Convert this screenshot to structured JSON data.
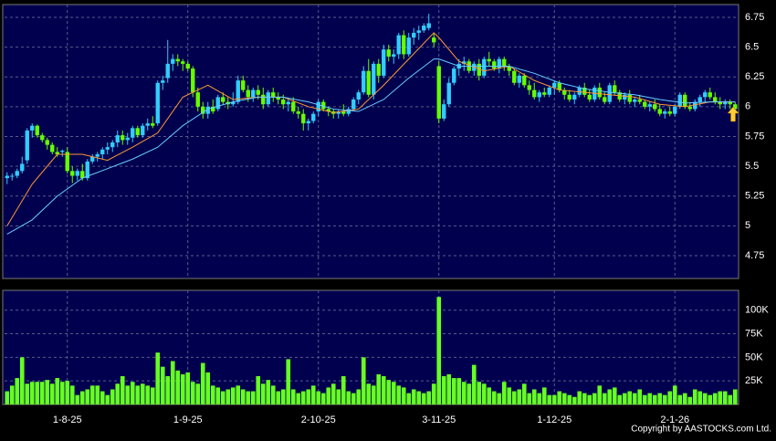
{
  "chart_data": {
    "type": "candlestick",
    "grid": true,
    "up_color": "#33ccff",
    "down_color": "#66ff00",
    "categories": [
      null,
      null,
      null,
      null,
      null,
      null,
      null,
      null,
      null,
      null,
      null,
      null,
      "1-8-25",
      null,
      null,
      null,
      null,
      null,
      null,
      null,
      null,
      null,
      null,
      null,
      null,
      null,
      null,
      null,
      null,
      null,
      null,
      null,
      null,
      null,
      null,
      null,
      "1-9-25",
      null,
      null,
      null,
      null,
      null,
      null,
      null,
      null,
      null,
      null,
      null,
      null,
      null,
      null,
      null,
      null,
      null,
      null,
      null,
      null,
      null,
      null,
      null,
      null,
      null,
      "2-10-25",
      null,
      null,
      null,
      null,
      null,
      null,
      null,
      null,
      null,
      null,
      null,
      null,
      null,
      null,
      null,
      null,
      null,
      null,
      null,
      null,
      null,
      null,
      null,
      "3-11-25",
      null,
      null,
      null,
      null,
      null,
      null,
      null,
      null,
      null,
      null,
      null,
      null,
      null,
      null,
      null,
      null,
      null,
      null,
      null,
      null,
      null,
      null,
      "1-12-25",
      null,
      null,
      null,
      null,
      null,
      null,
      null,
      null,
      null,
      null,
      null,
      null,
      null,
      null,
      null,
      null,
      null,
      null,
      null,
      null,
      null,
      null,
      null,
      "2-1-26",
      null,
      null,
      null,
      null,
      null,
      null,
      null,
      null,
      null,
      null,
      null,
      null
    ],
    "ohlc": [
      [
        5.4,
        5.45,
        5.35,
        5.42
      ],
      [
        5.42,
        5.44,
        5.38,
        5.42
      ],
      [
        5.42,
        5.48,
        5.4,
        5.46
      ],
      [
        5.46,
        5.58,
        5.44,
        5.52
      ],
      [
        5.55,
        5.82,
        5.52,
        5.8
      ],
      [
        5.8,
        5.86,
        5.74,
        5.84
      ],
      [
        5.84,
        5.85,
        5.74,
        5.76
      ],
      [
        5.76,
        5.78,
        5.7,
        5.72
      ],
      [
        5.72,
        5.74,
        5.64,
        5.68
      ],
      [
        5.68,
        5.7,
        5.6,
        5.62
      ],
      [
        5.62,
        5.66,
        5.58,
        5.6
      ],
      [
        5.62,
        5.64,
        5.58,
        5.63
      ],
      [
        5.62,
        5.66,
        5.44,
        5.46
      ],
      [
        5.46,
        5.5,
        5.36,
        5.42
      ],
      [
        5.42,
        5.48,
        5.38,
        5.46
      ],
      [
        5.46,
        5.52,
        5.38,
        5.4
      ],
      [
        5.4,
        5.56,
        5.38,
        5.54
      ],
      [
        5.54,
        5.6,
        5.52,
        5.58
      ],
      [
        5.58,
        5.62,
        5.54,
        5.6
      ],
      [
        5.6,
        5.66,
        5.56,
        5.64
      ],
      [
        5.64,
        5.7,
        5.6,
        5.66
      ],
      [
        5.66,
        5.72,
        5.62,
        5.7
      ],
      [
        5.7,
        5.8,
        5.66,
        5.76
      ],
      [
        5.76,
        5.8,
        5.68,
        5.72
      ],
      [
        5.72,
        5.78,
        5.68,
        5.74
      ],
      [
        5.74,
        5.84,
        5.7,
        5.82
      ],
      [
        5.82,
        5.84,
        5.74,
        5.76
      ],
      [
        5.76,
        5.86,
        5.74,
        5.84
      ],
      [
        5.84,
        5.9,
        5.8,
        5.86
      ],
      [
        5.86,
        5.92,
        5.82,
        5.84
      ],
      [
        5.86,
        6.22,
        5.84,
        6.2
      ],
      [
        6.2,
        6.26,
        6.14,
        6.22
      ],
      [
        6.24,
        6.56,
        6.2,
        6.36
      ],
      [
        6.36,
        6.44,
        6.3,
        6.4
      ],
      [
        6.4,
        6.44,
        6.34,
        6.38
      ],
      [
        6.38,
        6.4,
        6.3,
        6.36
      ],
      [
        6.36,
        6.38,
        6.3,
        6.32
      ],
      [
        6.32,
        6.34,
        6.08,
        6.12
      ],
      [
        6.12,
        6.16,
        5.96,
        6.0
      ],
      [
        6.0,
        6.04,
        5.9,
        5.94
      ],
      [
        5.94,
        6.04,
        5.9,
        6.0
      ],
      [
        6.0,
        6.06,
        5.94,
        5.96
      ],
      [
        5.98,
        6.1,
        5.96,
        6.08
      ],
      [
        6.08,
        6.12,
        6.02,
        6.04
      ],
      [
        6.04,
        6.08,
        5.98,
        6.02
      ],
      [
        6.02,
        6.12,
        6.0,
        6.04
      ],
      [
        6.04,
        6.26,
        6.02,
        6.22
      ],
      [
        6.22,
        6.26,
        6.12,
        6.14
      ],
      [
        6.14,
        6.18,
        6.04,
        6.08
      ],
      [
        6.08,
        6.16,
        6.04,
        6.14
      ],
      [
        6.14,
        6.18,
        6.06,
        6.1
      ],
      [
        6.1,
        6.16,
        5.98,
        6.02
      ],
      [
        6.02,
        6.14,
        6.0,
        6.12
      ],
      [
        6.12,
        6.16,
        6.04,
        6.08
      ],
      [
        6.08,
        6.12,
        6.02,
        6.06
      ],
      [
        6.06,
        6.1,
        5.98,
        6.02
      ],
      [
        6.02,
        6.06,
        5.96,
        6.04
      ],
      [
        6.04,
        6.08,
        5.94,
        5.96
      ],
      [
        5.96,
        6.0,
        5.9,
        5.94
      ],
      [
        5.94,
        5.98,
        5.8,
        5.86
      ],
      [
        5.86,
        5.9,
        5.8,
        5.88
      ],
      [
        5.88,
        5.96,
        5.86,
        5.94
      ],
      [
        5.96,
        6.06,
        5.92,
        6.04
      ],
      [
        6.04,
        6.06,
        5.96,
        5.98
      ],
      [
        5.98,
        6.0,
        5.92,
        5.96
      ],
      [
        5.96,
        5.98,
        5.9,
        5.94
      ],
      [
        5.94,
        5.98,
        5.9,
        5.96
      ],
      [
        5.96,
        6.02,
        5.92,
        5.94
      ],
      [
        5.94,
        6.0,
        5.92,
        5.98
      ],
      [
        5.98,
        6.08,
        5.96,
        6.06
      ],
      [
        6.06,
        6.14,
        6.02,
        6.12
      ],
      [
        6.12,
        6.34,
        6.1,
        6.3
      ],
      [
        6.3,
        6.4,
        6.08,
        6.1
      ],
      [
        6.1,
        6.38,
        6.06,
        6.36
      ],
      [
        6.36,
        6.4,
        6.2,
        6.26
      ],
      [
        6.26,
        6.52,
        6.24,
        6.48
      ],
      [
        6.48,
        6.52,
        6.38,
        6.42
      ],
      [
        6.42,
        6.48,
        6.36,
        6.44
      ],
      [
        6.44,
        6.62,
        6.4,
        6.6
      ],
      [
        6.6,
        6.64,
        6.4,
        6.44
      ],
      [
        6.44,
        6.62,
        6.42,
        6.58
      ],
      [
        6.58,
        6.66,
        6.52,
        6.62
      ],
      [
        6.62,
        6.68,
        6.56,
        6.64
      ],
      [
        6.64,
        6.7,
        6.62,
        6.68
      ],
      [
        6.66,
        6.78,
        6.64,
        6.7
      ],
      [
        6.58,
        6.62,
        6.5,
        6.54
      ],
      [
        6.34,
        6.38,
        5.86,
        5.9
      ],
      [
        5.9,
        6.06,
        5.88,
        6.02
      ],
      [
        6.02,
        6.24,
        6.0,
        6.2
      ],
      [
        6.2,
        6.34,
        6.18,
        6.32
      ],
      [
        6.32,
        6.4,
        6.26,
        6.36
      ],
      [
        6.36,
        6.42,
        6.3,
        6.38
      ],
      [
        6.38,
        6.4,
        6.28,
        6.3
      ],
      [
        6.3,
        6.38,
        6.26,
        6.36
      ],
      [
        6.36,
        6.4,
        6.22,
        6.26
      ],
      [
        6.26,
        6.42,
        6.24,
        6.4
      ],
      [
        6.4,
        6.46,
        6.34,
        6.38
      ],
      [
        6.38,
        6.4,
        6.3,
        6.32
      ],
      [
        6.32,
        6.42,
        6.28,
        6.4
      ],
      [
        6.4,
        6.42,
        6.3,
        6.34
      ],
      [
        6.34,
        6.36,
        6.26,
        6.3
      ],
      [
        6.3,
        6.32,
        6.18,
        6.2
      ],
      [
        6.2,
        6.28,
        6.16,
        6.26
      ],
      [
        6.26,
        6.28,
        6.16,
        6.18
      ],
      [
        6.18,
        6.22,
        6.1,
        6.14
      ],
      [
        6.14,
        6.2,
        6.06,
        6.08
      ],
      [
        6.08,
        6.14,
        6.04,
        6.12
      ],
      [
        6.12,
        6.16,
        6.08,
        6.1
      ],
      [
        6.1,
        6.18,
        6.08,
        6.16
      ],
      [
        6.16,
        6.22,
        6.1,
        6.2
      ],
      [
        6.2,
        6.22,
        6.12,
        6.14
      ],
      [
        6.14,
        6.16,
        6.06,
        6.1
      ],
      [
        6.1,
        6.14,
        6.04,
        6.06
      ],
      [
        6.06,
        6.12,
        6.02,
        6.1
      ],
      [
        6.1,
        6.18,
        6.08,
        6.16
      ],
      [
        6.16,
        6.2,
        6.08,
        6.1
      ],
      [
        6.1,
        6.14,
        6.04,
        6.06
      ],
      [
        6.06,
        6.18,
        6.04,
        6.16
      ],
      [
        6.16,
        6.2,
        6.06,
        6.08
      ],
      [
        6.08,
        6.12,
        6.02,
        6.04
      ],
      [
        6.04,
        6.2,
        6.02,
        6.18
      ],
      [
        6.18,
        6.22,
        6.1,
        6.12
      ],
      [
        6.12,
        6.14,
        6.04,
        6.06
      ],
      [
        6.06,
        6.12,
        6.02,
        6.1
      ],
      [
        6.1,
        6.14,
        6.02,
        6.04
      ],
      [
        6.04,
        6.08,
        6.0,
        6.06
      ],
      [
        6.06,
        6.1,
        6.02,
        6.04
      ],
      [
        6.04,
        6.06,
        5.98,
        6.0
      ],
      [
        6.0,
        6.04,
        5.96,
        6.02
      ],
      [
        6.02,
        6.06,
        5.96,
        5.98
      ],
      [
        5.98,
        6.02,
        5.92,
        5.94
      ],
      [
        5.94,
        5.98,
        5.9,
        5.96
      ],
      [
        5.96,
        6.0,
        5.92,
        5.94
      ],
      [
        5.94,
        6.02,
        5.92,
        6.0
      ],
      [
        6.0,
        6.12,
        5.98,
        6.1
      ],
      [
        6.1,
        6.12,
        5.98,
        6.0
      ],
      [
        6.0,
        6.04,
        5.96,
        5.98
      ],
      [
        5.98,
        6.06,
        5.96,
        6.04
      ],
      [
        6.04,
        6.1,
        6.0,
        6.08
      ],
      [
        6.08,
        6.14,
        6.04,
        6.12
      ],
      [
        6.12,
        6.16,
        6.06,
        6.08
      ],
      [
        6.08,
        6.12,
        6.02,
        6.04
      ],
      [
        6.04,
        6.08,
        5.98,
        6.02
      ],
      [
        6.02,
        6.06,
        5.98,
        6.04
      ],
      [
        6.04,
        6.06,
        5.98,
        6.02
      ],
      [
        6.02,
        6.04,
        5.96,
        5.98
      ]
    ],
    "ylim": [
      4.558,
      6.857
    ],
    "yticks": [
      4.75,
      5,
      5.25,
      5.5,
      5.75,
      6,
      6.25,
      6.5,
      6.75
    ],
    "series": [
      {
        "color": "#ff9933",
        "x": [
          0,
          5,
          10,
          15,
          20,
          25,
          30,
          35,
          40,
          45,
          50,
          55,
          60,
          65,
          70,
          75,
          80,
          85,
          86,
          90,
          95,
          100,
          105,
          110,
          115,
          120,
          125,
          130,
          135,
          140,
          145
        ],
        "values": [
          5.0,
          5.35,
          5.6,
          5.6,
          5.55,
          5.66,
          5.78,
          6.08,
          6.18,
          6.06,
          6.08,
          6.08,
          6.0,
          5.95,
          5.98,
          6.18,
          6.4,
          6.62,
          6.58,
          6.38,
          6.3,
          6.34,
          6.22,
          6.14,
          6.12,
          6.1,
          6.08,
          6.02,
          6.0,
          6.04,
          6.04
        ]
      },
      {
        "color": "#66ccff",
        "x": [
          0,
          5,
          10,
          15,
          20,
          25,
          30,
          35,
          40,
          45,
          50,
          55,
          60,
          65,
          70,
          75,
          80,
          85,
          86,
          90,
          95,
          100,
          105,
          110,
          115,
          120,
          125,
          130,
          135,
          140,
          145
        ],
        "values": [
          4.93,
          5.05,
          5.25,
          5.4,
          5.48,
          5.56,
          5.66,
          5.84,
          5.98,
          6.04,
          6.08,
          6.08,
          6.04,
          5.98,
          5.96,
          6.06,
          6.24,
          6.4,
          6.4,
          6.34,
          6.34,
          6.34,
          6.28,
          6.2,
          6.15,
          6.12,
          6.1,
          6.06,
          6.03,
          6.04,
          6.04
        ]
      }
    ],
    "volume": {
      "color": "#66ff22",
      "ylim": [
        0,
        121000
      ],
      "yticks": [
        {
          "value": 25000,
          "label": "25K"
        },
        {
          "value": 50000,
          "label": "50K"
        },
        {
          "value": 75000,
          "label": "75K"
        },
        {
          "value": 100000,
          "label": "100K"
        }
      ],
      "values": [
        14000,
        20000,
        28000,
        50000,
        22000,
        24000,
        24000,
        24000,
        26000,
        22000,
        28000,
        24000,
        25000,
        20000,
        10000,
        14000,
        16000,
        20000,
        20000,
        14000,
        10000,
        16000,
        22000,
        30000,
        20000,
        24000,
        20000,
        22000,
        20000,
        18000,
        55000,
        40000,
        30000,
        46000,
        36000,
        32000,
        34000,
        24000,
        22000,
        44000,
        34000,
        20000,
        18000,
        14000,
        16000,
        18000,
        20000,
        16000,
        14000,
        14000,
        30000,
        22000,
        26000,
        20000,
        14000,
        16000,
        48000,
        16000,
        12000,
        14000,
        16000,
        20000,
        14000,
        12000,
        18000,
        22000,
        16000,
        30000,
        14000,
        12000,
        16000,
        50000,
        22000,
        20000,
        32000,
        30000,
        26000,
        24000,
        20000,
        18000,
        12000,
        16000,
        14000,
        12000,
        14000,
        22000,
        114000,
        30000,
        32000,
        28000,
        28000,
        24000,
        22000,
        42000,
        24000,
        22000,
        18000,
        14000,
        12000,
        24000,
        18000,
        14000,
        16000,
        22000,
        12000,
        16000,
        12000,
        18000,
        10000,
        10000,
        14000,
        12000,
        10000,
        8000,
        14000,
        12000,
        10000,
        12000,
        20000,
        12000,
        16000,
        18000,
        10000,
        12000,
        14000,
        12000,
        16000,
        10000,
        12000,
        10000,
        12000,
        10000,
        14000,
        20000,
        10000,
        12000,
        8000,
        16000,
        14000,
        12000,
        10000,
        12000,
        14000,
        14000,
        10000,
        16000
      ]
    }
  },
  "footer": "Copyright by AASTOCKS.com Ltd."
}
